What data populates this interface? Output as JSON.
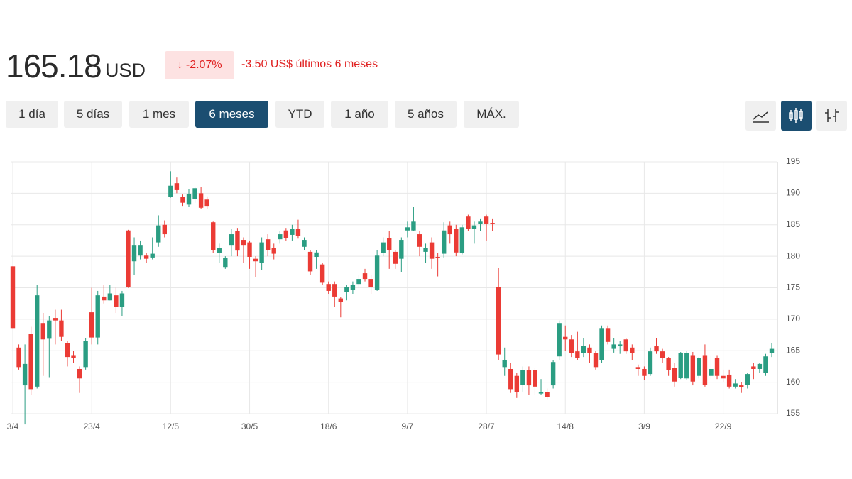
{
  "quote": {
    "price": "165.18",
    "currency": "USD",
    "change_percent": "-2.07%",
    "change_text": "-3.50 US$ últimos 6 meses"
  },
  "ranges": [
    "1 día",
    "5 días",
    "1 mes",
    "6 meses",
    "YTD",
    "1 año",
    "5 años",
    "MÁX."
  ],
  "chart_data": {
    "type": "candlestick",
    "up_color": "#2a9d82",
    "down_color": "#eb3b35",
    "grid": true,
    "ylim": [
      155,
      195
    ],
    "yticks": [
      155,
      160,
      165,
      170,
      175,
      180,
      185,
      190,
      195
    ],
    "categories": [
      "3/4",
      null,
      null,
      null,
      null,
      null,
      null,
      null,
      null,
      null,
      null,
      null,
      null,
      "23/4",
      null,
      null,
      null,
      null,
      null,
      null,
      null,
      null,
      null,
      null,
      null,
      null,
      "12/5",
      null,
      null,
      null,
      null,
      null,
      null,
      null,
      null,
      null,
      null,
      null,
      null,
      "30/5",
      null,
      null,
      null,
      null,
      null,
      null,
      null,
      null,
      null,
      null,
      null,
      null,
      "18/6",
      null,
      null,
      null,
      null,
      null,
      null,
      null,
      null,
      null,
      null,
      null,
      null,
      "9/7",
      null,
      null,
      null,
      null,
      null,
      null,
      null,
      null,
      null,
      null,
      null,
      null,
      "28/7",
      null,
      null,
      null,
      null,
      null,
      null,
      null,
      null,
      null,
      null,
      null,
      null,
      "14/8",
      null,
      null,
      null,
      null,
      null,
      null,
      null,
      null,
      null,
      null,
      null,
      null,
      "3/9",
      null,
      null,
      null,
      null,
      null,
      null,
      null,
      null,
      null,
      null,
      null,
      null,
      "22/9",
      null,
      null,
      null,
      null,
      null,
      null,
      null,
      null
    ],
    "open": [
      178.4,
      165.5,
      159.5,
      167.7,
      159.3,
      169.4,
      166.9,
      170.2,
      169.8,
      166.2,
      164.3,
      162.1,
      162.4,
      171.1,
      167.1,
      173.6,
      173.0,
      173.8,
      172.0,
      184.1,
      179.2,
      180.1,
      180.1,
      179.8,
      182.2,
      185.0,
      189.4,
      191.6,
      189.4,
      188.2,
      189.1,
      190.0,
      189.0,
      185.4,
      180.5,
      178.3,
      181.8,
      184.0,
      182.6,
      182.2,
      179.6,
      179.0,
      182.7,
      181.3,
      182.7,
      184.1,
      183.4,
      184.4,
      181.5,
      180.7,
      179.9,
      178.7,
      175.6,
      175.6,
      173.3,
      174.3,
      174.7,
      175.6,
      177.3,
      176.4,
      174.7,
      180.5,
      182.9,
      180.7,
      179.6,
      184.1,
      184.1,
      183.5,
      180.7,
      182.2,
      179.9,
      180.4,
      184.9,
      184.4,
      180.5,
      186.3,
      184.4,
      185.2,
      186.3,
      185.3,
      175.1,
      162.4,
      162.1,
      161.0,
      159.6,
      161.9,
      161.9,
      158.2,
      158.4,
      159.5,
      164.1,
      167.2,
      166.8,
      164.9,
      164.6,
      165.5,
      164.6,
      163.5,
      168.6,
      165.3,
      165.7,
      166.8,
      165.5,
      162.4,
      162.1,
      161.3,
      165.7,
      164.9,
      163.8,
      162.3,
      160.7,
      160.6,
      164.3,
      161.0,
      164.3,
      161.0,
      163.8,
      161.0,
      161.2,
      159.3,
      159.5,
      159.6,
      162.5,
      162.1,
      161.5,
      164.6
    ],
    "high": [
      178.4,
      166,
      166,
      168.8,
      175.5,
      171,
      170.5,
      171.5,
      171.5,
      166.5,
      165,
      162.5,
      167,
      175,
      174.5,
      175.5,
      175.5,
      175,
      174.5,
      184.2,
      183,
      182.5,
      180.5,
      183,
      186.5,
      185.7,
      193.5,
      192.5,
      189.8,
      190.7,
      191,
      191,
      189.5,
      185.5,
      182,
      180,
      184.3,
      184.5,
      183,
      182.5,
      180,
      183,
      183.5,
      182,
      184,
      184.5,
      185,
      185.8,
      183,
      181,
      181,
      179,
      176,
      176,
      173.5,
      175.5,
      176,
      177,
      178,
      177,
      181,
      183,
      184,
      181,
      183,
      185.5,
      187.8,
      184,
      182,
      183,
      180.5,
      185.4,
      185.5,
      185,
      185,
      186.6,
      185.5,
      186,
      186.6,
      186,
      178.2,
      165.5,
      163,
      161.5,
      162.5,
      162.5,
      162.3,
      160.5,
      159,
      163.5,
      169.8,
      169,
      167.5,
      168,
      167,
      166,
      165,
      169,
      169,
      167,
      166.5,
      167,
      166,
      162.8,
      162.5,
      165.5,
      167,
      165.3,
      164,
      163,
      164.8,
      165,
      164.8,
      164,
      166,
      164.3,
      164.3,
      162,
      162,
      160.5,
      160,
      161.5,
      163,
      163,
      164.5,
      166.2
    ],
    "low": [
      168.6,
      162,
      153.3,
      158,
      159,
      161,
      160.8,
      166,
      166.5,
      162.5,
      163,
      158.3,
      162,
      166,
      166,
      172.5,
      173,
      171,
      170.5,
      175,
      177,
      179.5,
      179,
      179.5,
      181.5,
      183,
      189.3,
      190,
      188,
      187.8,
      188.5,
      187.5,
      187.5,
      180.5,
      179,
      178,
      180,
      180,
      179,
      178,
      176.7,
      177.8,
      180,
      179.5,
      182,
      182.5,
      182.5,
      182.8,
      181,
      177,
      178,
      175.5,
      174,
      172,
      170.3,
      173,
      174,
      175,
      176,
      174,
      174.5,
      180,
      178,
      178,
      177.5,
      183,
      184,
      180,
      179,
      178,
      176.8,
      179.8,
      182,
      180,
      180.3,
      184,
      182,
      184,
      182.5,
      184,
      163.5,
      161,
      158.3,
      157.5,
      158.5,
      158,
      158,
      158,
      157.3,
      159,
      163.5,
      165,
      164,
      163.5,
      164,
      163,
      162,
      163,
      166,
      164.7,
      164.5,
      164.5,
      163.5,
      161,
      160.4,
      161,
      164.5,
      163,
      161,
      159.3,
      160.5,
      160.4,
      159.5,
      160.6,
      159.3,
      160.5,
      160.5,
      160,
      159,
      159,
      158.3,
      159,
      160.5,
      161.5,
      161,
      164
    ],
    "close": [
      168.6,
      162.4,
      162.9,
      158.9,
      173.8,
      166.8,
      169.8,
      169.8,
      167.2,
      164.0,
      163.9,
      160.6,
      166.5,
      167.1,
      173.8,
      173.0,
      174.1,
      172.0,
      174.1,
      175.1,
      181.8,
      181.8,
      179.6,
      180.4,
      184.9,
      183.5,
      191.2,
      190.5,
      188.5,
      189.9,
      190.8,
      187.7,
      188.0,
      181.0,
      181.3,
      179.7,
      183.5,
      180.9,
      181.8,
      179.9,
      179.2,
      182.2,
      181.0,
      180.4,
      183.5,
      182.9,
      184.4,
      183.2,
      182.6,
      177.6,
      180.6,
      175.8,
      174.5,
      173.6,
      172.8,
      175.1,
      175.4,
      176.4,
      176.4,
      175.1,
      180.1,
      182.2,
      181.0,
      178.8,
      182.6,
      184.6,
      185.5,
      181.5,
      181.3,
      179.6,
      179.7,
      184.1,
      183.5,
      180.6,
      184.6,
      184.4,
      184.9,
      185.5,
      185.2,
      185.1,
      164.4,
      163.5,
      158.9,
      158.4,
      161.9,
      159.5,
      159.3,
      158.4,
      157.6,
      163.2,
      169.4,
      166.8,
      164.6,
      163.8,
      165.8,
      164.6,
      162.4,
      168.6,
      166.4,
      166.0,
      166.0,
      164.9,
      164.6,
      162.1,
      161.0,
      164.9,
      164.9,
      163.8,
      161.9,
      160.1,
      164.6,
      164.6,
      160.1,
      163.8,
      159.6,
      162.1,
      161.0,
      160.6,
      159.3,
      159.8,
      159.2,
      161.3,
      162.1,
      162.9,
      164.1,
      165.3
    ]
  }
}
